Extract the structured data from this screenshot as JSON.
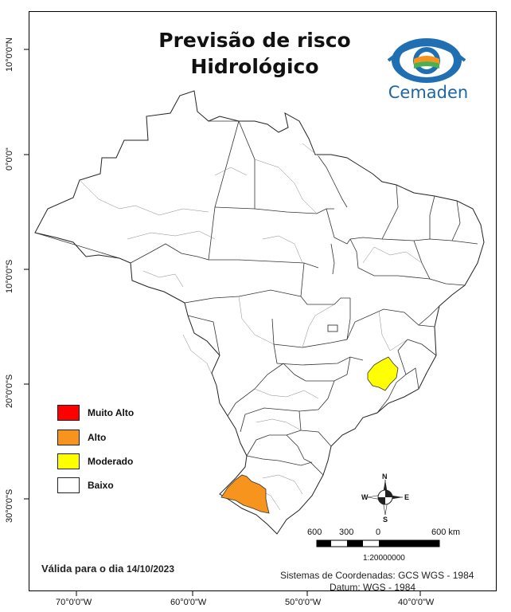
{
  "map": {
    "title_line1": "Previsão de risco",
    "title_line2": "Hidrológico",
    "logo_name": "Cemaden",
    "risk_colors": {
      "muito_alto": "#ff0000",
      "alto": "#f7941d",
      "moderado": "#ffff00",
      "baixo": "#ffffff"
    },
    "highlighted_regions": [
      {
        "state": "Rio Grande do Sul (sudoeste)",
        "risk": "Alto"
      },
      {
        "state": "Minas Gerais (centro)",
        "risk": "Moderado"
      }
    ]
  },
  "legend": [
    {
      "label": "Muito Alto",
      "color": "#ff0000"
    },
    {
      "label": "Alto",
      "color": "#f7941d"
    },
    {
      "label": "Moderado",
      "color": "#ffff00"
    },
    {
      "label": "Baixo",
      "color": "#ffffff"
    }
  ],
  "latitude_labels": [
    "10°0'0\"N",
    "0°0'0\"",
    "10°0'0\"S",
    "20°0'0\"S",
    "30°0'0\"S"
  ],
  "longitude_labels": [
    "70°0'0\"W",
    "60°0'0\"W",
    "50°0'0\"W",
    "40°0'0\"W"
  ],
  "scale_bar": {
    "labels": [
      "600",
      "300",
      "0",
      "600 km"
    ],
    "ratio": "1:20000000"
  },
  "north_arrow": {
    "n": "N",
    "s": "S",
    "e": "E",
    "w": "W"
  },
  "valid": {
    "prefix": "Válida para o dia",
    "date": "14/10/2023"
  },
  "coordinates": {
    "system": "Sistemas de Coordenadas: GCS WGS - 1984",
    "datum": "Datum: WGS - 1984"
  }
}
